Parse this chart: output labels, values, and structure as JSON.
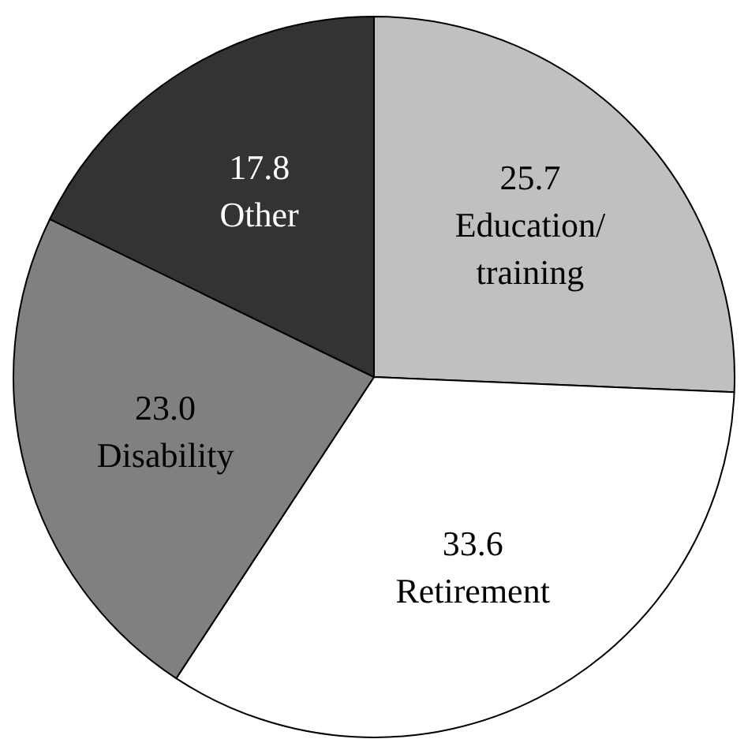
{
  "chart_data": {
    "type": "pie",
    "categories": [
      "Education/training",
      "Retirement",
      "Disability",
      "Other"
    ],
    "values": [
      25.7,
      33.6,
      23.0,
      17.8
    ],
    "value_labels": [
      "25.7",
      "33.6",
      "23.0",
      "17.8"
    ],
    "colors": [
      "#c0c0c0",
      "#ffffff",
      "#808080",
      "#333333"
    ]
  }
}
